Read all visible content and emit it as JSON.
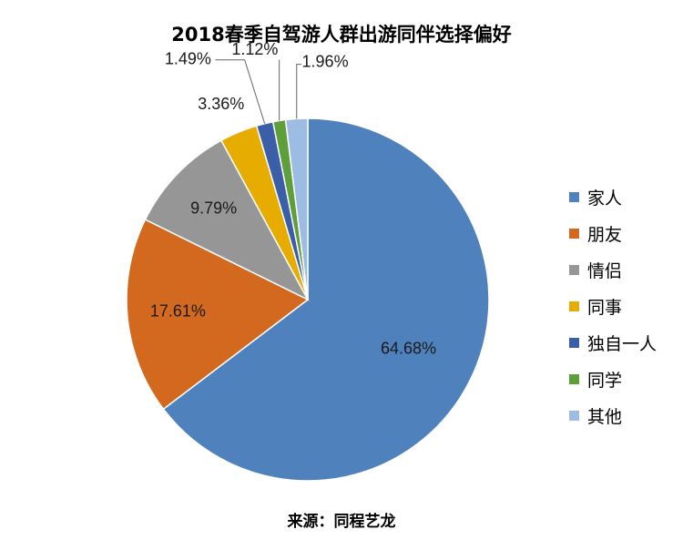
{
  "chart_data": {
    "type": "pie",
    "title": "2018春季自驾游人群出游同伴选择偏好",
    "source": "来源：同程艺龙",
    "legend_position": "right",
    "slices": [
      {
        "name": "家人",
        "value": 64.68,
        "label": "64.68%",
        "color": "#4F81BD"
      },
      {
        "name": "朋友",
        "value": 17.61,
        "label": "17.61%",
        "color": "#D2691E"
      },
      {
        "name": "情侣",
        "value": 9.79,
        "label": "9.79%",
        "color": "#969696"
      },
      {
        "name": "同事",
        "value": 3.36,
        "label": "3.36%",
        "color": "#E6AC00"
      },
      {
        "name": "独自一人",
        "value": 1.49,
        "label": "1.49%",
        "color": "#3A5FA8"
      },
      {
        "name": "同学",
        "value": 1.12,
        "label": "1.12%",
        "color": "#5E9E3B"
      },
      {
        "name": "其他",
        "value": 1.96,
        "label": "1.96%",
        "color": "#9DBCE3"
      }
    ]
  }
}
